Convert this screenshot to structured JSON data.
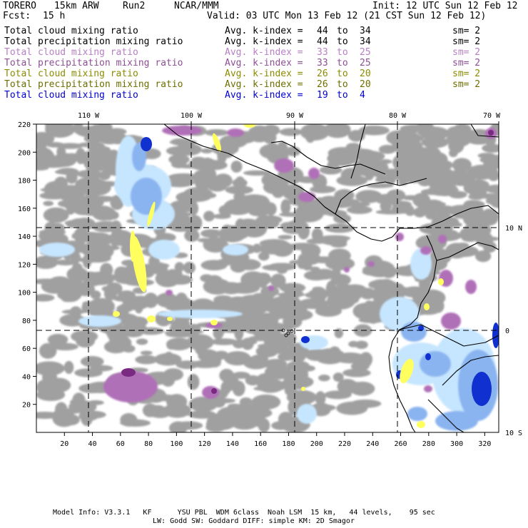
{
  "header": {
    "model": "TORERO",
    "resolution": "15km ARW",
    "run": "Run2",
    "org": "NCAR/MMM",
    "init": "Init: 12 UTC Sun 12 Feb 12",
    "fcst_label": "Fcst:",
    "fcst_value": "15 h",
    "valid": "Valid: 03 UTC Mon 13 Feb 12 (21 CST Sun 12 Feb 12)"
  },
  "legend": [
    {
      "field": "Total cloud mixing ratio",
      "avg": "Avg. k-index =",
      "hi": "44",
      "to": "to",
      "lo": "34",
      "sm": "sm= 2",
      "color": "#000000"
    },
    {
      "field": "Total precipitation mixing ratio",
      "avg": "Avg. k-index =",
      "hi": "44",
      "to": "to",
      "lo": "34",
      "sm": "sm= 2",
      "color": "#000000"
    },
    {
      "field": "Total cloud mixing ratio",
      "avg": "Avg. k-index =",
      "hi": "33",
      "to": "to",
      "lo": "25",
      "sm": "sm= 2",
      "color": "#b87fc4"
    },
    {
      "field": "Total precipitation mixing ratio",
      "avg": "Avg. k-index =",
      "hi": "33",
      "to": "to",
      "lo": "25",
      "sm": "sm= 2",
      "color": "#8e4e96"
    },
    {
      "field": "Total cloud mixing ratio",
      "avg": "Avg. k-index =",
      "hi": "26",
      "to": "to",
      "lo": "20",
      "sm": "sm= 2",
      "color": "#8b8b00"
    },
    {
      "field": "Total precipitation mixing ratio",
      "avg": "Avg. k-index =",
      "hi": "26",
      "to": "to",
      "lo": "20",
      "sm": "sm= 2",
      "color": "#6e6e00"
    },
    {
      "field": "Total cloud mixing ratio",
      "avg": "Avg. k-index =",
      "hi": "19",
      "to": "to",
      "lo": "4",
      "sm": "",
      "color": "#0000d0"
    }
  ],
  "map": {
    "lon_labels": [
      "110 W",
      "100 W",
      "90 W",
      "80 W",
      "70 W"
    ],
    "lat_labels": [
      "10 N",
      "0",
      "10 S"
    ],
    "x_ticks": [
      "20",
      "40",
      "60",
      "80",
      "100",
      "120",
      "140",
      "160",
      "180",
      "200",
      "220",
      "240",
      "260",
      "280",
      "300",
      "320"
    ],
    "y_ticks": [
      "20",
      "40",
      "60",
      "80",
      "100",
      "120",
      "140",
      "160",
      "180",
      "200",
      "220"
    ],
    "colors": {
      "cloud_gray": "#a0a0a0",
      "cloud_lightblue": "#c6e6ff",
      "cloud_blue": "#8ab4f0",
      "cloud_darkblue": "#1030d0",
      "precip_purple": "#b070b8",
      "precip_darkpurple": "#7a2a80",
      "precip_yellow": "#ffff60",
      "coast": "#000000"
    }
  },
  "footer": {
    "line1": "Model Info: V3.3.1   KF      YSU PBL  WDM 6class  Noah LSM  15 km,   44 levels,    95 sec",
    "line2": "LW: Godd SW: Goddard DIFF: simple KM: 2D Smagor"
  }
}
